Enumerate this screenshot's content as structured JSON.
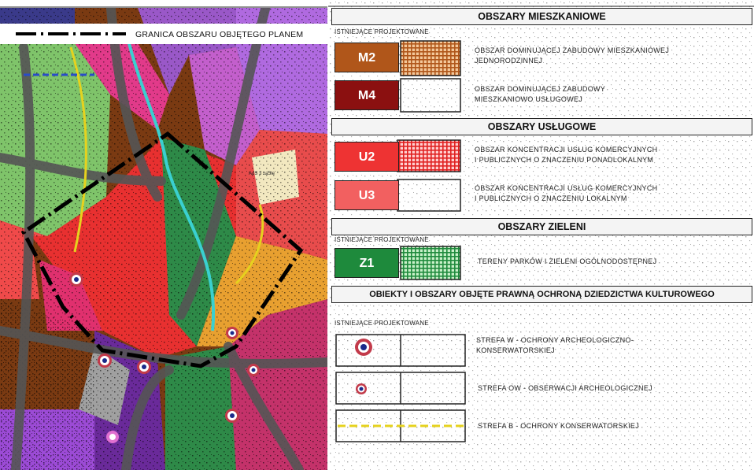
{
  "map": {
    "boundary_legend_label": "GRANICA OBSZARU OBJĘTEGO PLANEM",
    "plot_label": "AdS 3 zaSie"
  },
  "legend": {
    "sections": {
      "residential": "OBSZARY MIESZKANIOWE",
      "services": "OBSZARY USŁUGOWE",
      "greenery": "OBSZARY ZIELENI",
      "heritage": "OBIEKTY I OBSZARY OBJĘTE PRAWNĄ OCHRONĄ DZIEDZICTWA KULTUROWEGO"
    },
    "column_headers": {
      "residential": "ISTNIEJĄCE  PROJEKTOWANE",
      "greenery": "ISTNIEJĄCE  PROJEKTOWANE",
      "heritage": "ISTNIEJĄCE  PROJEKTOWANE"
    },
    "items": {
      "m2": {
        "code": "M2",
        "desc1": "OBSZAR  DOMINUJĄCEJ  ZABUDOWY  MIESZKANIOWEJ",
        "desc2": "JEDNORODZINNEJ",
        "color": "#b0561a"
      },
      "m4": {
        "code": "M4",
        "desc1": "OBSZAR DOMINUJĄCEJ ZABUDOWY",
        "desc2": "MIESZKANIOWO  USŁUGOWEJ",
        "color": "#8b1010"
      },
      "u2": {
        "code": "U2",
        "desc1": "OBSZAR KONCENTRACJI USŁUG KOMERCYJNYCH",
        "desc2": "I PUBLICZNYCH  O ZNACZENIU PONADLOKALNYM",
        "color": "#ee3333"
      },
      "u3": {
        "code": "U3",
        "desc1": "OBSZAR  KONCENTRACJI  USŁUG  KOMERCYJNYCH",
        "desc2": "I PUBLICZNYCH  O ZNACZENIU  LOKALNYM",
        "color": "#f26060"
      },
      "z1": {
        "code": "Z1",
        "desc1": "TERENY PARKÓW  I ZIELENI  OGÓLNODOSTĘPNEJ",
        "desc2": "",
        "color": "#1e8a3c"
      },
      "w": {
        "desc1": "STREFA  W  -  OCHRONY  ARCHEOLOGICZNO-",
        "desc2": "KONSERWATORSKIEJ"
      },
      "ow": {
        "desc1": "STREFA  OW  -  OBSERWACJI  ARCHEOLOGICZNEJ",
        "desc2": ""
      },
      "b": {
        "desc1": "STREFA  B  -  OCHRONY  KONSERWATORSKIEJ",
        "desc2": ""
      }
    }
  }
}
